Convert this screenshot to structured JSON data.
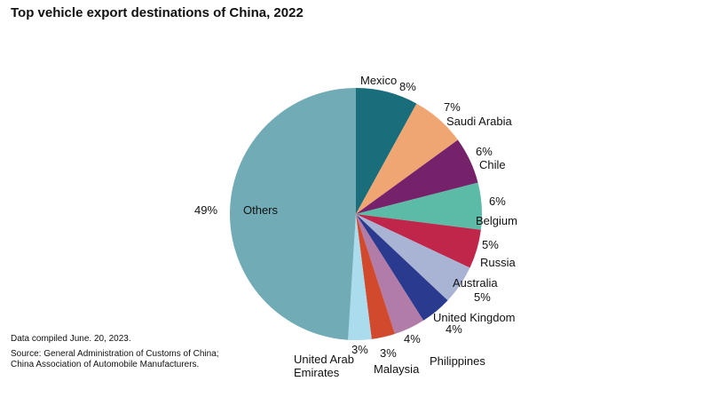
{
  "chart_data": {
    "type": "pie",
    "title": "Top vehicle export destinations of China, 2022",
    "categories": [
      "Mexico",
      "Saudi Arabia",
      "Chile",
      "Belgium",
      "Russia",
      "Australia",
      "United Kingdom",
      "Philippines",
      "Malaysia",
      "United Arab Emirates",
      "Others"
    ],
    "values": [
      8,
      7,
      6,
      6,
      5,
      5,
      4,
      4,
      3,
      3,
      49
    ],
    "value_labels": [
      "8%",
      "7%",
      "6%",
      "6%",
      "5%",
      "5%",
      "4%",
      "4%",
      "3%",
      "3%",
      "49%"
    ],
    "colors": [
      "#1a6e7c",
      "#f0a673",
      "#76226a",
      "#5bbba6",
      "#c0264a",
      "#a9b3d3",
      "#2a3b8f",
      "#b27ca8",
      "#d24a2e",
      "#aadcee",
      "#70abb6"
    ],
    "start": "top",
    "direction": "clockwise",
    "legend": "none"
  },
  "notes": {
    "compiled": "Data compiled June. 20, 2023.",
    "source_line1": "Source: General Administration of Customs of China;",
    "source_line2": "China Association of Automobile Manufacturers."
  }
}
